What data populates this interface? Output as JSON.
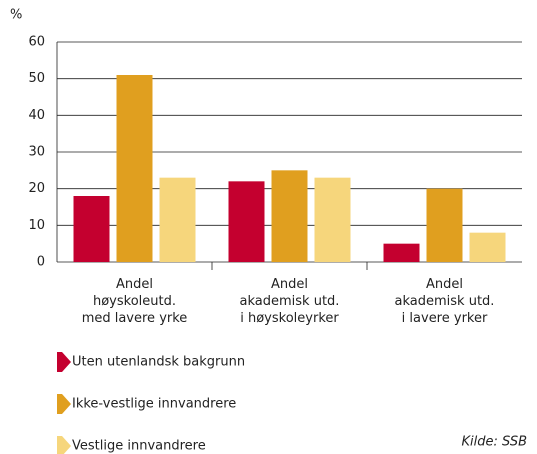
{
  "chart_data": {
    "type": "bar",
    "y_label": "%",
    "categories": [
      "Andel\nhøyskoleutd.\nmed lavere yrke",
      "Andel\nakademisk utd.\ni høyskoleyrker",
      "Andel\nakademisk utd.\ni lavere yrker"
    ],
    "series": [
      {
        "name": "Uten utenlandsk bakgrunn",
        "color": "#c4002f",
        "values": [
          18,
          22,
          5
        ]
      },
      {
        "name": "Ikke-vestlige innvandrere",
        "color": "#e09f1f",
        "values": [
          51,
          25,
          20
        ]
      },
      {
        "name": "Vestlige innvandrere",
        "color": "#f6d67c",
        "values": [
          23,
          23,
          8
        ]
      }
    ],
    "ylim": [
      0,
      60
    ],
    "yticks": [
      0,
      10,
      20,
      30,
      40,
      50,
      60
    ],
    "grid": true,
    "source": "Kilde: SSB"
  }
}
